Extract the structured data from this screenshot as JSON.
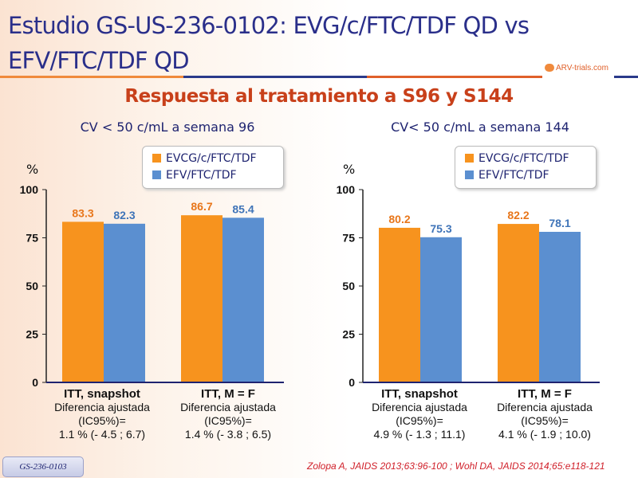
{
  "title": "Estudio GS-US-236-0102: EVG/c/FTC/TDF QD vs EFV/FTC/TDF QD",
  "logo": "ARV-trials.com",
  "subtitle": "Respuesta al tratamiento a S96 y S144",
  "badge": "GS-236-0103",
  "reference": "Zolopa A, JAIDS 2013;63:96-100 ; Wohl DA, JAIDS 2014;65:e118-121",
  "colors": {
    "orange": "#f7931e",
    "blue": "#5b8fd0",
    "title": "#2a2f8a",
    "subtitle": "#c8401a"
  },
  "chart_data": [
    {
      "type": "bar",
      "title": "CV < 50 c/mL a semana 96",
      "ylabel": "%",
      "ylim": [
        0,
        100
      ],
      "yticks": [
        "0",
        "25",
        "50",
        "75",
        "100"
      ],
      "legend": [
        "EVCG/c/FTC/TDF",
        "EFV/FTC/TDF"
      ],
      "legend_position": "top-right",
      "categories": [
        "ITT, snapshot",
        "ITT, M = F"
      ],
      "series": [
        {
          "name": "EVCG/c/FTC/TDF",
          "values": [
            83.3,
            86.7
          ],
          "labels": [
            "83.3",
            "86.7"
          ]
        },
        {
          "name": "EFV/FTC/TDF",
          "values": [
            82.3,
            85.4
          ],
          "labels": [
            "82.3",
            "85.4"
          ]
        }
      ],
      "notes": [
        {
          "line1": "Diferencia ajustada",
          "line2": "(IC95%)=",
          "line3": "1.1 % (- 4.5 ; 6.7)"
        },
        {
          "line1": "Diferencia ajustada",
          "line2": "(IC95%)=",
          "line3": "1.4 % (- 3.8 ; 6.5)"
        }
      ]
    },
    {
      "type": "bar",
      "title": "CV< 50 c/mL a semana 144",
      "ylabel": "%",
      "ylim": [
        0,
        100
      ],
      "yticks": [
        "0",
        "25",
        "50",
        "75",
        "100"
      ],
      "legend": [
        "EVCG/c/FTC/TDF",
        "EFV/FTC/TDF"
      ],
      "legend_position": "top-right",
      "categories": [
        "ITT, snapshot",
        "ITT, M = F"
      ],
      "series": [
        {
          "name": "EVCG/c/FTC/TDF",
          "values": [
            80.2,
            82.2
          ],
          "labels": [
            "80.2",
            "82.2"
          ]
        },
        {
          "name": "EFV/FTC/TDF",
          "values": [
            75.3,
            78.1
          ],
          "labels": [
            "75.3",
            "78.1"
          ]
        }
      ],
      "notes": [
        {
          "line1": "Diferencia ajustada",
          "line2": "(IC95%)=",
          "line3": "4.9 % (- 1.3 ; 11.1)"
        },
        {
          "line1": "Diferencia ajustada",
          "line2": "(IC95%)=",
          "line3": "4.1 % (- 1.9 ; 10.0)"
        }
      ]
    }
  ]
}
